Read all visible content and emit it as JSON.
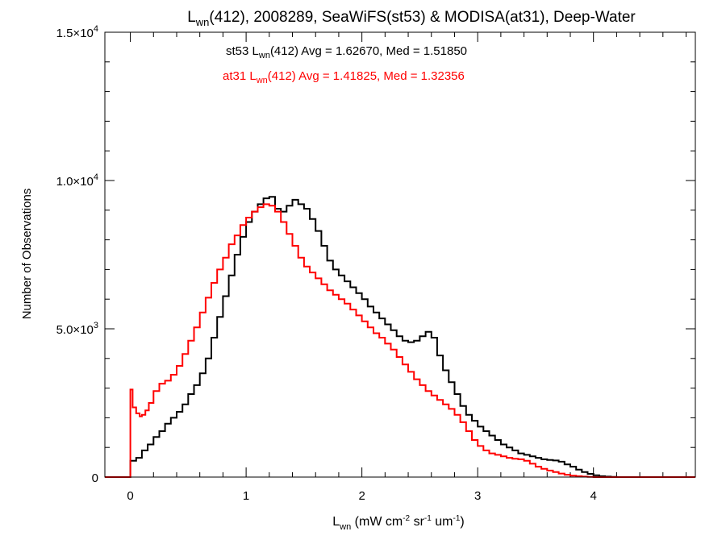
{
  "chart_data": {
    "type": "line",
    "style": "histogram-step",
    "title": {
      "prefix": "L",
      "sub": "wn",
      "rest": "(412), 2008289, SeaWiFS(st53) & MODISA(at31), Deep-Water"
    },
    "xlabel": {
      "main": "L",
      "sub": "wn",
      "units_parts": [
        {
          "t": " (mW cm"
        },
        {
          "s": "-2"
        },
        {
          "t": " sr"
        },
        {
          "s": "-1"
        },
        {
          "t": " um"
        },
        {
          "s": "-1"
        },
        {
          "t": ")"
        }
      ]
    },
    "ylabel": "Number of Observations",
    "xlim": [
      -0.22,
      4.88
    ],
    "ylim": [
      0,
      15000
    ],
    "grid": false,
    "x_ticks": [
      {
        "v": 0,
        "label": "0"
      },
      {
        "v": 1,
        "label": "1"
      },
      {
        "v": 2,
        "label": "2"
      },
      {
        "v": 3,
        "label": "3"
      },
      {
        "v": 4,
        "label": "4"
      }
    ],
    "x_minor_step": 0.2,
    "y_ticks": [
      {
        "v": 0,
        "mant": "0",
        "exp": ""
      },
      {
        "v": 5000,
        "mant": "5.0×10",
        "exp": "3"
      },
      {
        "v": 10000,
        "mant": "1.0×10",
        "exp": "4"
      },
      {
        "v": 15000,
        "mant": "1.5×10",
        "exp": "4"
      }
    ],
    "y_minor_step": 1000,
    "legend": {
      "position": "top-center",
      "entries": [
        {
          "color": "#000000",
          "label_pre": "st53 L",
          "label_sub": "wn",
          "label_post": "(412) Avg = 1.62670, Med = 1.51850"
        },
        {
          "color": "#ff0000",
          "label_pre": "at31 L",
          "label_sub": "wn",
          "label_post": "(412) Avg = 1.41825, Med = 1.32356"
        }
      ]
    },
    "series": [
      {
        "id": "st53",
        "color": "#000000",
        "points": [
          [
            -0.22,
            0
          ],
          [
            0,
            0
          ],
          [
            0,
            550
          ],
          [
            0.05,
            650
          ],
          [
            0.1,
            900
          ],
          [
            0.15,
            1100
          ],
          [
            0.2,
            1350
          ],
          [
            0.25,
            1550
          ],
          [
            0.3,
            1800
          ],
          [
            0.35,
            2000
          ],
          [
            0.4,
            2200
          ],
          [
            0.45,
            2450
          ],
          [
            0.5,
            2800
          ],
          [
            0.55,
            3100
          ],
          [
            0.6,
            3500
          ],
          [
            0.65,
            4000
          ],
          [
            0.7,
            4700
          ],
          [
            0.75,
            5400
          ],
          [
            0.8,
            6100
          ],
          [
            0.85,
            6800
          ],
          [
            0.9,
            7500
          ],
          [
            0.95,
            8100
          ],
          [
            1.0,
            8600
          ],
          [
            1.05,
            8950
          ],
          [
            1.1,
            9200
          ],
          [
            1.15,
            9400
          ],
          [
            1.2,
            9450
          ],
          [
            1.25,
            9050
          ],
          [
            1.3,
            8950
          ],
          [
            1.35,
            9150
          ],
          [
            1.4,
            9350
          ],
          [
            1.45,
            9200
          ],
          [
            1.5,
            9050
          ],
          [
            1.55,
            8700
          ],
          [
            1.6,
            8300
          ],
          [
            1.65,
            7800
          ],
          [
            1.7,
            7300
          ],
          [
            1.75,
            7000
          ],
          [
            1.8,
            6800
          ],
          [
            1.85,
            6600
          ],
          [
            1.9,
            6400
          ],
          [
            1.95,
            6200
          ],
          [
            2.0,
            6000
          ],
          [
            2.05,
            5750
          ],
          [
            2.1,
            5550
          ],
          [
            2.15,
            5350
          ],
          [
            2.2,
            5150
          ],
          [
            2.25,
            4950
          ],
          [
            2.3,
            4750
          ],
          [
            2.35,
            4600
          ],
          [
            2.4,
            4550
          ],
          [
            2.45,
            4600
          ],
          [
            2.5,
            4750
          ],
          [
            2.55,
            4900
          ],
          [
            2.6,
            4700
          ],
          [
            2.65,
            4100
          ],
          [
            2.7,
            3600
          ],
          [
            2.75,
            3200
          ],
          [
            2.8,
            2800
          ],
          [
            2.85,
            2400
          ],
          [
            2.9,
            2100
          ],
          [
            2.95,
            1900
          ],
          [
            3.0,
            1700
          ],
          [
            3.05,
            1550
          ],
          [
            3.1,
            1400
          ],
          [
            3.15,
            1250
          ],
          [
            3.2,
            1100
          ],
          [
            3.25,
            1000
          ],
          [
            3.3,
            900
          ],
          [
            3.35,
            800
          ],
          [
            3.4,
            750
          ],
          [
            3.45,
            700
          ],
          [
            3.5,
            650
          ],
          [
            3.55,
            600
          ],
          [
            3.6,
            580
          ],
          [
            3.65,
            560
          ],
          [
            3.7,
            520
          ],
          [
            3.75,
            430
          ],
          [
            3.8,
            350
          ],
          [
            3.85,
            250
          ],
          [
            3.9,
            170
          ],
          [
            3.95,
            110
          ],
          [
            4.0,
            60
          ],
          [
            4.05,
            30
          ],
          [
            4.1,
            15
          ],
          [
            4.15,
            5
          ],
          [
            4.2,
            0
          ],
          [
            4.88,
            0
          ]
        ]
      },
      {
        "id": "at31",
        "color": "#ff0000",
        "points": [
          [
            -0.22,
            0
          ],
          [
            0,
            0
          ],
          [
            0,
            2950
          ],
          [
            0.02,
            2350
          ],
          [
            0.05,
            2150
          ],
          [
            0.08,
            2050
          ],
          [
            0.1,
            2100
          ],
          [
            0.13,
            2250
          ],
          [
            0.16,
            2500
          ],
          [
            0.2,
            2900
          ],
          [
            0.25,
            3150
          ],
          [
            0.3,
            3250
          ],
          [
            0.35,
            3450
          ],
          [
            0.4,
            3750
          ],
          [
            0.45,
            4150
          ],
          [
            0.5,
            4600
          ],
          [
            0.55,
            5050
          ],
          [
            0.6,
            5550
          ],
          [
            0.65,
            6050
          ],
          [
            0.7,
            6550
          ],
          [
            0.75,
            7000
          ],
          [
            0.8,
            7400
          ],
          [
            0.85,
            7850
          ],
          [
            0.9,
            8150
          ],
          [
            0.95,
            8500
          ],
          [
            1.0,
            8750
          ],
          [
            1.05,
            8950
          ],
          [
            1.1,
            9100
          ],
          [
            1.15,
            9200
          ],
          [
            1.2,
            9150
          ],
          [
            1.25,
            8950
          ],
          [
            1.3,
            8600
          ],
          [
            1.35,
            8200
          ],
          [
            1.4,
            7800
          ],
          [
            1.45,
            7400
          ],
          [
            1.5,
            7100
          ],
          [
            1.55,
            6900
          ],
          [
            1.6,
            6700
          ],
          [
            1.65,
            6500
          ],
          [
            1.7,
            6300
          ],
          [
            1.75,
            6150
          ],
          [
            1.8,
            6000
          ],
          [
            1.85,
            5850
          ],
          [
            1.9,
            5650
          ],
          [
            1.95,
            5450
          ],
          [
            2.0,
            5250
          ],
          [
            2.05,
            5050
          ],
          [
            2.1,
            4850
          ],
          [
            2.15,
            4700
          ],
          [
            2.2,
            4500
          ],
          [
            2.25,
            4300
          ],
          [
            2.3,
            4050
          ],
          [
            2.35,
            3800
          ],
          [
            2.4,
            3550
          ],
          [
            2.45,
            3300
          ],
          [
            2.5,
            3100
          ],
          [
            2.55,
            2900
          ],
          [
            2.6,
            2750
          ],
          [
            2.65,
            2600
          ],
          [
            2.7,
            2450
          ],
          [
            2.75,
            2300
          ],
          [
            2.8,
            2100
          ],
          [
            2.85,
            1850
          ],
          [
            2.9,
            1550
          ],
          [
            2.95,
            1250
          ],
          [
            3.0,
            1050
          ],
          [
            3.05,
            900
          ],
          [
            3.1,
            800
          ],
          [
            3.15,
            750
          ],
          [
            3.2,
            700
          ],
          [
            3.25,
            650
          ],
          [
            3.3,
            620
          ],
          [
            3.35,
            600
          ],
          [
            3.4,
            550
          ],
          [
            3.45,
            450
          ],
          [
            3.5,
            350
          ],
          [
            3.55,
            280
          ],
          [
            3.6,
            220
          ],
          [
            3.65,
            170
          ],
          [
            3.7,
            120
          ],
          [
            3.75,
            80
          ],
          [
            3.8,
            50
          ],
          [
            3.85,
            30
          ],
          [
            3.9,
            15
          ],
          [
            3.95,
            5
          ],
          [
            4.0,
            0
          ],
          [
            4.88,
            0
          ]
        ]
      }
    ]
  }
}
